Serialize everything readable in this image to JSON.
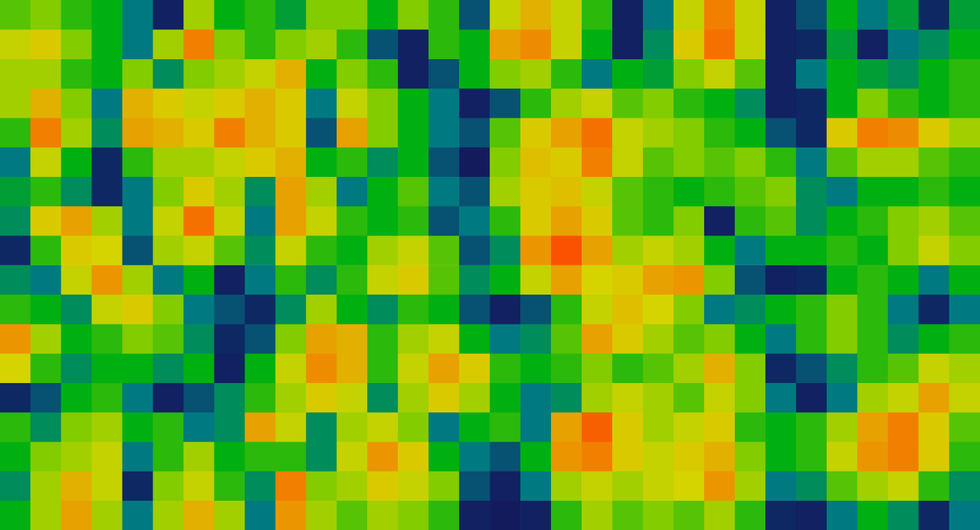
{
  "chart_data": {
    "type": "heatmap",
    "grid": false,
    "tick_labels": false,
    "value_range": [
      0,
      100
    ],
    "cells": [
      [
        50,
        55,
        45,
        40,
        25,
        10,
        60,
        40,
        45,
        35,
        55,
        55,
        40,
        55,
        45,
        20,
        65,
        75,
        65,
        45,
        10,
        25,
        65,
        85,
        65,
        10,
        20,
        40,
        25,
        35,
        15,
        35
      ],
      [
        65,
        70,
        55,
        40,
        25,
        60,
        85,
        55,
        45,
        55,
        60,
        45,
        20,
        10,
        45,
        40,
        78,
        82,
        65,
        40,
        10,
        30,
        70,
        88,
        65,
        10,
        15,
        35,
        10,
        25,
        30,
        40
      ],
      [
        60,
        60,
        45,
        40,
        55,
        30,
        55,
        60,
        65,
        75,
        40,
        55,
        45,
        10,
        20,
        40,
        55,
        60,
        45,
        25,
        40,
        35,
        55,
        65,
        50,
        10,
        25,
        40,
        35,
        30,
        40,
        45
      ],
      [
        60,
        75,
        55,
        25,
        75,
        70,
        65,
        70,
        75,
        70,
        25,
        65,
        55,
        40,
        25,
        10,
        20,
        45,
        60,
        65,
        50,
        55,
        45,
        40,
        30,
        10,
        15,
        40,
        55,
        45,
        40,
        45
      ],
      [
        45,
        85,
        60,
        30,
        78,
        75,
        70,
        85,
        75,
        70,
        20,
        78,
        55,
        40,
        25,
        20,
        50,
        70,
        78,
        88,
        65,
        60,
        55,
        45,
        40,
        20,
        15,
        70,
        85,
        82,
        70,
        60
      ],
      [
        25,
        65,
        40,
        15,
        45,
        60,
        60,
        65,
        70,
        75,
        40,
        45,
        30,
        40,
        20,
        5,
        55,
        72,
        70,
        85,
        65,
        50,
        55,
        50,
        55,
        45,
        25,
        50,
        60,
        60,
        50,
        45
      ],
      [
        35,
        45,
        30,
        15,
        25,
        55,
        70,
        60,
        30,
        78,
        60,
        25,
        40,
        50,
        25,
        20,
        60,
        70,
        72,
        65,
        50,
        45,
        40,
        45,
        50,
        55,
        30,
        25,
        40,
        40,
        45,
        40
      ],
      [
        30,
        70,
        78,
        60,
        25,
        65,
        88,
        65,
        25,
        78,
        65,
        45,
        40,
        45,
        20,
        25,
        45,
        70,
        78,
        70,
        50,
        45,
        55,
        10,
        45,
        50,
        30,
        40,
        45,
        55,
        60,
        50
      ],
      [
        15,
        45,
        70,
        68,
        20,
        60,
        65,
        50,
        30,
        65,
        45,
        40,
        60,
        65,
        50,
        20,
        30,
        80,
        95,
        78,
        60,
        65,
        60,
        40,
        25,
        40,
        40,
        45,
        40,
        55,
        65,
        55
      ],
      [
        30,
        25,
        65,
        80,
        60,
        25,
        40,
        10,
        25,
        45,
        30,
        45,
        65,
        70,
        50,
        30,
        40,
        65,
        78,
        68,
        70,
        78,
        80,
        55,
        20,
        10,
        15,
        40,
        45,
        40,
        25,
        40
      ],
      [
        45,
        40,
        30,
        65,
        70,
        55,
        25,
        20,
        15,
        30,
        60,
        40,
        30,
        45,
        40,
        20,
        10,
        20,
        45,
        65,
        72,
        68,
        55,
        25,
        30,
        40,
        45,
        55,
        45,
        25,
        15,
        25
      ],
      [
        80,
        60,
        40,
        45,
        55,
        50,
        30,
        15,
        20,
        55,
        78,
        75,
        45,
        60,
        65,
        40,
        25,
        30,
        50,
        78,
        70,
        60,
        50,
        55,
        40,
        25,
        45,
        55,
        45,
        30,
        40,
        45
      ],
      [
        68,
        45,
        30,
        40,
        40,
        30,
        40,
        10,
        40,
        65,
        82,
        75,
        45,
        65,
        78,
        70,
        45,
        40,
        45,
        55,
        45,
        50,
        60,
        75,
        55,
        15,
        20,
        30,
        45,
        50,
        65,
        60
      ],
      [
        15,
        20,
        40,
        45,
        25,
        10,
        20,
        30,
        45,
        60,
        70,
        65,
        30,
        60,
        70,
        60,
        40,
        25,
        30,
        60,
        65,
        60,
        50,
        65,
        55,
        25,
        10,
        25,
        60,
        65,
        78,
        65
      ],
      [
        45,
        30,
        55,
        60,
        40,
        45,
        25,
        30,
        78,
        65,
        30,
        60,
        65,
        55,
        25,
        40,
        45,
        25,
        78,
        92,
        70,
        60,
        65,
        70,
        45,
        40,
        45,
        60,
        78,
        85,
        70,
        50
      ],
      [
        40,
        55,
        60,
        65,
        25,
        45,
        60,
        40,
        45,
        45,
        30,
        65,
        80,
        70,
        40,
        25,
        20,
        40,
        80,
        85,
        70,
        65,
        70,
        75,
        55,
        40,
        45,
        65,
        80,
        85,
        70,
        45
      ],
      [
        30,
        60,
        75,
        65,
        15,
        55,
        65,
        45,
        30,
        85,
        55,
        60,
        70,
        65,
        55,
        20,
        10,
        25,
        60,
        65,
        60,
        65,
        68,
        80,
        60,
        25,
        30,
        50,
        60,
        65,
        45,
        30
      ],
      [
        40,
        60,
        78,
        60,
        25,
        60,
        75,
        60,
        25,
        80,
        60,
        50,
        60,
        55,
        45,
        10,
        5,
        10,
        45,
        60,
        50,
        55,
        50,
        60,
        45,
        15,
        10,
        25,
        40,
        30,
        15,
        25
      ]
    ]
  }
}
